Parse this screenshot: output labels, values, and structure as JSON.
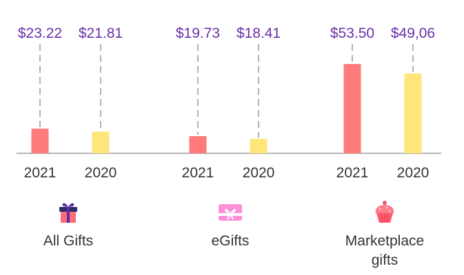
{
  "chart_data": {
    "type": "bar",
    "title": "",
    "xlabel": "",
    "ylabel": "",
    "groups": [
      {
        "name": "All Gifts",
        "icon": "gift-box-icon",
        "bars": [
          {
            "label": "2021",
            "value": 23.22,
            "display": "$23.22"
          },
          {
            "label": "2020",
            "value": 21.81,
            "display": "$21.81"
          }
        ]
      },
      {
        "name": "eGifts",
        "icon": "gift-card-icon",
        "bars": [
          {
            "label": "2021",
            "value": 19.73,
            "display": "$19.73"
          },
          {
            "label": "2020",
            "value": 18.41,
            "display": "$18.41"
          }
        ]
      },
      {
        "name": "Marketplace gifts",
        "icon": "cupcake-icon",
        "bars": [
          {
            "label": "2021",
            "value": 53.5,
            "display": "$53.50"
          },
          {
            "label": "2020",
            "value": 49.06,
            "display": "$49,06"
          }
        ]
      }
    ],
    "series_colors": {
      "2021": "#ff7b7b",
      "2020": "#ffe57a"
    },
    "grid": false,
    "legend": "none"
  }
}
